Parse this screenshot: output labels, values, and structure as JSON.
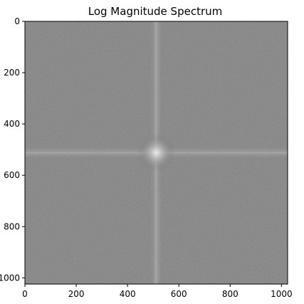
{
  "chart_data": {
    "type": "heatmap",
    "title": "Log Magnitude Spectrum",
    "xlabel": "",
    "ylabel": "",
    "colormap": "gray",
    "image_size": [
      1024,
      1024
    ],
    "xlim": [
      0,
      1024
    ],
    "ylim": [
      1024,
      0
    ],
    "y_axis_inverted": true,
    "x_ticks": [
      0,
      200,
      400,
      600,
      800,
      1000
    ],
    "x_tick_labels": [
      "0",
      "200",
      "400",
      "600",
      "800",
      "1000"
    ],
    "y_ticks": [
      0,
      200,
      400,
      600,
      800,
      1000
    ],
    "y_tick_labels": [
      "0",
      "200",
      "400",
      "600",
      "800",
      "1000"
    ],
    "background_level": "#505050",
    "dc_center": [
      512,
      512
    ],
    "grid": false,
    "legend": "none"
  }
}
